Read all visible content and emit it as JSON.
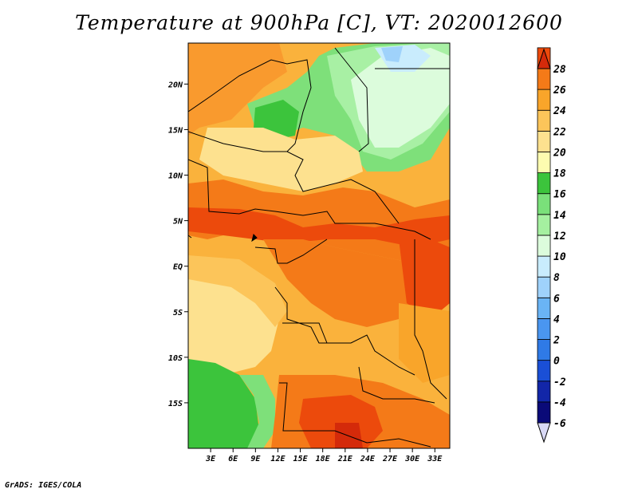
{
  "title": "Temperature at 900hPa [C], VT: 2020012600",
  "credit": "GrADS: IGES/COLA",
  "map": {
    "lat_ticks": [
      "20N",
      "15N",
      "10N",
      "5N",
      "EQ",
      "5S",
      "10S",
      "15S"
    ],
    "lat_values": [
      20,
      15,
      10,
      5,
      0,
      -5,
      -10,
      -15
    ],
    "lon_ticks": [
      "3E",
      "6E",
      "9E",
      "12E",
      "15E",
      "18E",
      "21E",
      "24E",
      "27E",
      "30E",
      "33E"
    ],
    "lon_values": [
      3,
      6,
      9,
      12,
      15,
      18,
      21,
      24,
      27,
      30,
      33
    ],
    "lon_range": [
      0,
      35
    ],
    "lat_range": [
      -20,
      24.5
    ]
  },
  "colorbar": {
    "labels": [
      "28",
      "26",
      "24",
      "22",
      "20",
      "18",
      "16",
      "14",
      "12",
      "10",
      "8",
      "6",
      "4",
      "2",
      "0",
      "-2",
      "-4",
      "-6"
    ],
    "colors": [
      "#d9d9f5",
      "#0a0a78",
      "#1226a8",
      "#1a4fd6",
      "#2f7ae6",
      "#4a96f0",
      "#6ab4f5",
      "#9fd2fb",
      "#c9ecfd",
      "#dcfcdc",
      "#a5f0a0",
      "#7ae07a",
      "#3cc43c",
      "#fdfcb0",
      "#fde18f",
      "#fcc55a",
      "#f9a52a",
      "#f47a18",
      "#ec4a0c",
      "#d42a0a"
    ]
  }
}
